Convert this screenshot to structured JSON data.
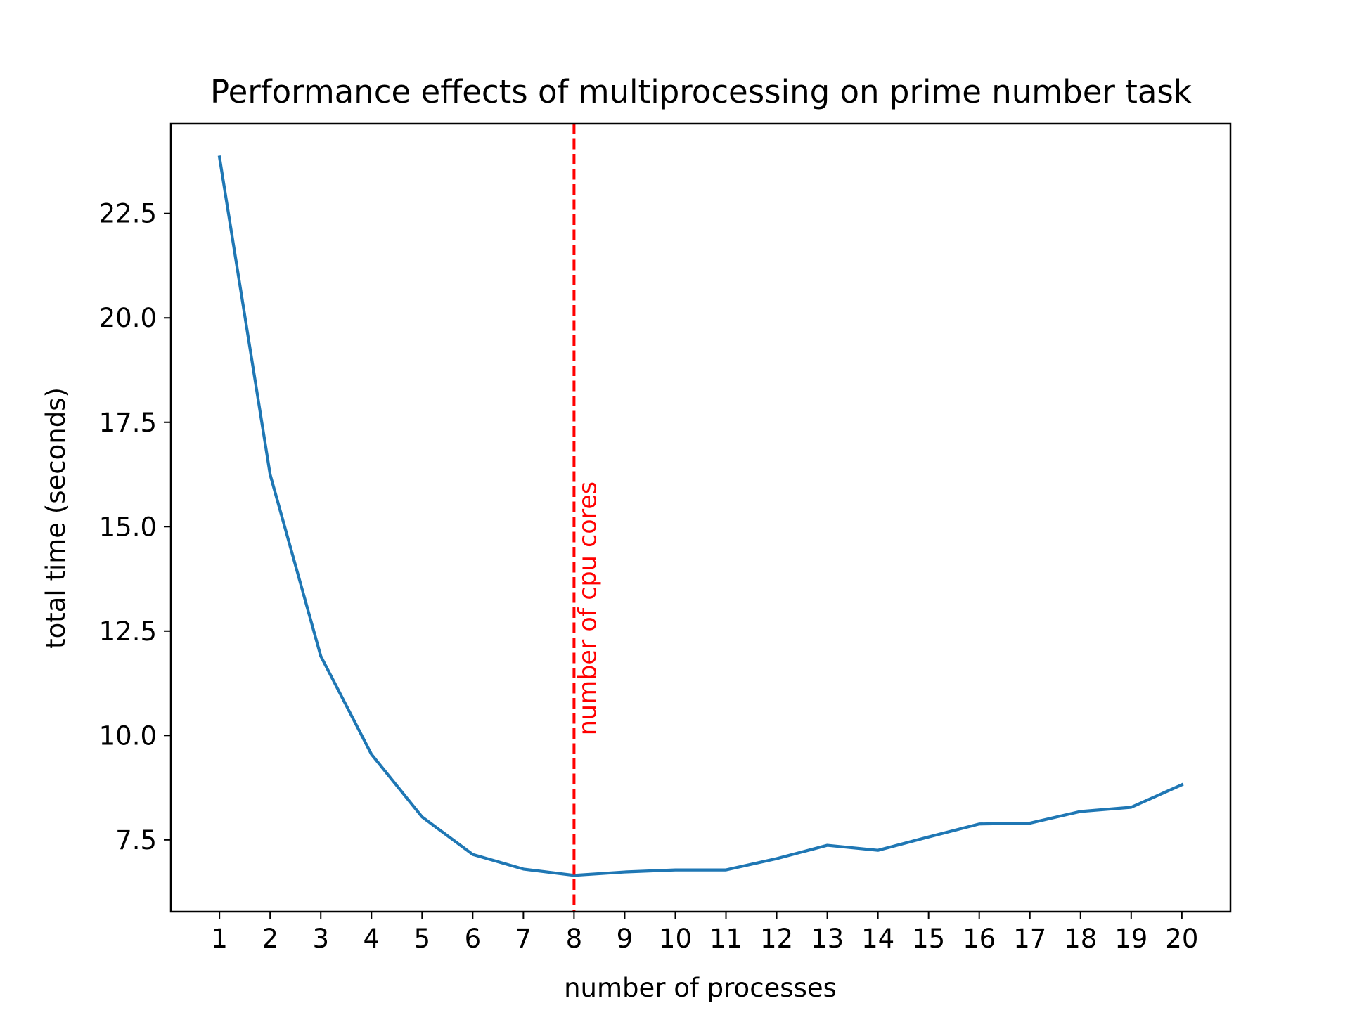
{
  "chart_data": {
    "type": "line",
    "title": "Performance effects of multiprocessing on prime number task",
    "xlabel": "number of processes",
    "ylabel": "total time (seconds)",
    "x": [
      1,
      2,
      3,
      4,
      5,
      6,
      7,
      8,
      9,
      10,
      11,
      12,
      13,
      14,
      15,
      16,
      17,
      18,
      19,
      20
    ],
    "xticks": [
      "1",
      "2",
      "3",
      "4",
      "5",
      "6",
      "7",
      "8",
      "9",
      "10",
      "11",
      "12",
      "13",
      "14",
      "15",
      "16",
      "17",
      "18",
      "19",
      "20"
    ],
    "xlim": [
      0.04,
      20.96
    ],
    "ylim": [
      5.78,
      24.65
    ],
    "yticks": [
      7.5,
      10.0,
      12.5,
      15.0,
      17.5,
      20.0,
      22.5
    ],
    "ytick_labels": [
      "7.5",
      "10.0",
      "12.5",
      "15.0",
      "17.5",
      "20.0",
      "22.5"
    ],
    "grid": false,
    "series": [
      {
        "color": "#1f77b4",
        "values": [
          23.85,
          16.25,
          11.9,
          9.55,
          8.05,
          7.15,
          6.8,
          6.65,
          6.73,
          6.78,
          6.78,
          7.05,
          7.37,
          7.25,
          7.57,
          7.88,
          7.9,
          8.18,
          8.28,
          8.82
        ]
      }
    ],
    "annotations": [
      {
        "type": "vline",
        "x": 8,
        "style": "dashed",
        "color": "#ff0000",
        "label": "number of cpu cores",
        "label_y": 10.0
      }
    ]
  }
}
